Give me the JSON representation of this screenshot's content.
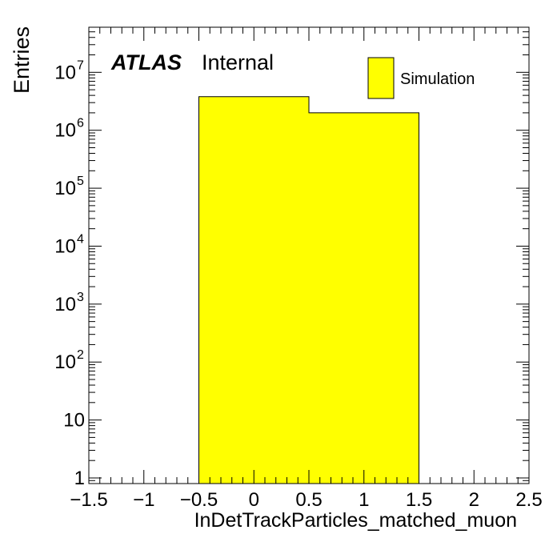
{
  "chart_data": {
    "type": "bar",
    "experiment_label": "ATLAS",
    "status_label": "Internal",
    "xlabel": "InDetTrackParticles_matched_muon",
    "ylabel": "Entries",
    "xlim": [
      -1.5,
      2.5
    ],
    "ylim": [
      0.8,
      60000000
    ],
    "yscale": "log",
    "x_ticks": [
      "−1.5",
      "−1",
      "−0.5",
      "0",
      "0.5",
      "1",
      "1.5",
      "2",
      "2.5"
    ],
    "y_ticks": [
      {
        "base": "1",
        "exp": ""
      },
      {
        "base": "10",
        "exp": ""
      },
      {
        "base": "10",
        "exp": "2"
      },
      {
        "base": "10",
        "exp": "3"
      },
      {
        "base": "10",
        "exp": "4"
      },
      {
        "base": "10",
        "exp": "5"
      },
      {
        "base": "10",
        "exp": "6"
      },
      {
        "base": "10",
        "exp": "7"
      }
    ],
    "series": [
      {
        "name": "Simulation",
        "color": "#ffff00",
        "bins": [
          {
            "low": -0.5,
            "high": 0.5,
            "value": 3800000
          },
          {
            "low": 0.5,
            "high": 1.5,
            "value": 2000000
          }
        ]
      }
    ],
    "legend_position": "top-right",
    "grid": false
  }
}
